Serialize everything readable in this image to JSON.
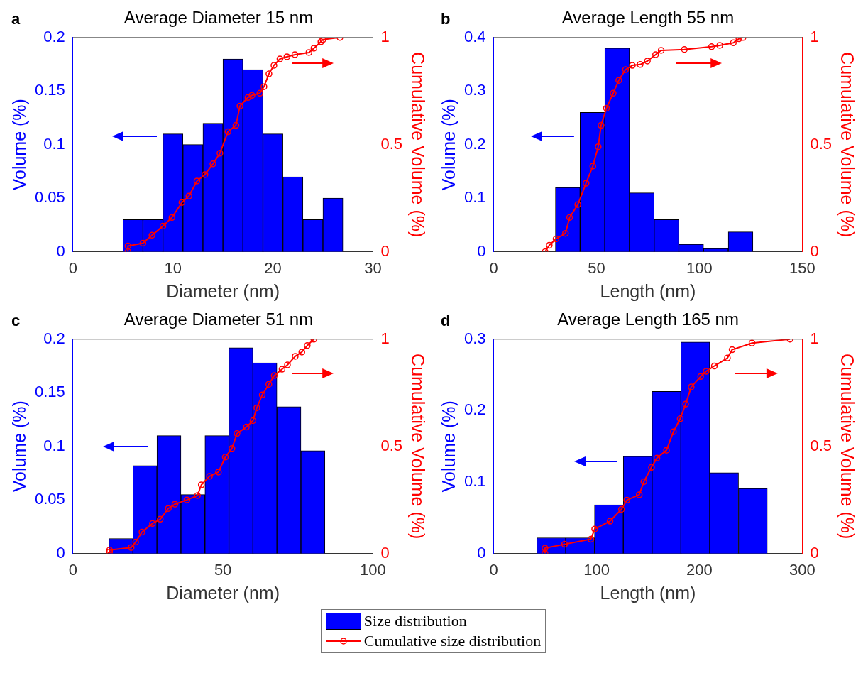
{
  "chart_data": [
    {
      "type": "histogram",
      "title": "Average Diameter 15 nm",
      "annotations": [
        "a"
      ],
      "xlabel": "Diameter (nm)",
      "ylabel": "Volume (%)",
      "y2label": "Cumulative Volume (%)",
      "xlim": [
        0,
        30
      ],
      "xticks": [
        0,
        10,
        20,
        30
      ],
      "ylim": [
        0,
        0.2
      ],
      "yticks": [
        0,
        0.05,
        0.1,
        0.15,
        0.2
      ],
      "y2lim": [
        0,
        1
      ],
      "y2ticks": [
        0,
        0.5,
        1
      ],
      "legend": "bottom",
      "series": [
        {
          "type": "histogram",
          "name": "Size distribution",
          "color": "#0000ff",
          "bins": [
            5,
            7,
            9,
            11,
            13,
            15,
            17,
            19,
            21,
            23,
            25,
            27
          ],
          "values": [
            0.03,
            0.03,
            0.11,
            0.1,
            0.12,
            0.18,
            0.17,
            0.11,
            0.07,
            0.03,
            0.05
          ]
        },
        {
          "type": "line",
          "axis": "y2",
          "name": "Cumulative size distribution",
          "color": "#ff0000",
          "marker": "circle",
          "line_style": "solid",
          "x": [
            5.5,
            5.5,
            7.0,
            7.9,
            9.0,
            9.9,
            10.9,
            11.6,
            12.4,
            13.2,
            14.0,
            14.7,
            15.5,
            16.3,
            16.7,
            17.5,
            17.9,
            18.7,
            19.1,
            19.6,
            20.1,
            20.7,
            21.4,
            22.2,
            23.6,
            24.1,
            24.8,
            25.0,
            26.7
          ],
          "values": [
            0,
            0.027,
            0.04,
            0.077,
            0.12,
            0.16,
            0.23,
            0.26,
            0.33,
            0.36,
            0.41,
            0.46,
            0.56,
            0.59,
            0.68,
            0.72,
            0.73,
            0.74,
            0.77,
            0.83,
            0.87,
            0.9,
            0.91,
            0.92,
            0.93,
            0.95,
            0.98,
            0.99,
            1.0
          ]
        }
      ]
    },
    {
      "type": "histogram",
      "title": "Average Length 55 nm",
      "annotations": [
        "b"
      ],
      "xlabel": "Length (nm)",
      "ylabel": "Volume (%)",
      "y2label": "Cumulative Volume (%)",
      "xlim": [
        0,
        150
      ],
      "xticks": [
        0,
        50,
        100,
        150
      ],
      "ylim": [
        0,
        0.4
      ],
      "yticks": [
        0,
        0.1,
        0.2,
        0.3,
        0.4
      ],
      "y2lim": [
        0,
        1
      ],
      "y2ticks": [
        0,
        0.5,
        1
      ],
      "series": [
        {
          "type": "histogram",
          "color": "#0000ff",
          "bins": [
            30,
            42,
            54,
            66,
            78,
            90,
            102,
            114,
            126
          ],
          "values": [
            0.12,
            0.26,
            0.38,
            0.11,
            0.06,
            0.014,
            0.006,
            0.037
          ]
        },
        {
          "type": "line",
          "axis": "y2",
          "color": "#ff0000",
          "marker": "circle",
          "line_style": "solid",
          "x": [
            25,
            27,
            30.3,
            34.9,
            36.9,
            40.9,
            44.9,
            48.2,
            50.8,
            52.2,
            54.8,
            58.1,
            60.8,
            64.1,
            67.4,
            71.2,
            74.7,
            78.7,
            81.4,
            92.7,
            105.9,
            109.9,
            116.5,
            119.2,
            121.2
          ],
          "values": [
            0,
            0.03,
            0.06,
            0.086,
            0.16,
            0.22,
            0.32,
            0.4,
            0.49,
            0.59,
            0.67,
            0.74,
            0.8,
            0.85,
            0.87,
            0.874,
            0.89,
            0.92,
            0.94,
            0.944,
            0.957,
            0.963,
            0.975,
            0.994,
            1.0
          ]
        }
      ]
    },
    {
      "type": "histogram",
      "title": "Average Diameter 51 nm",
      "annotations": [
        "c"
      ],
      "xlabel": "Diameter (nm)",
      "ylabel": "Volume (%)",
      "y2label": "Cumulative Volume (%)",
      "xlim": [
        0,
        100
      ],
      "xticks": [
        0,
        50,
        100
      ],
      "ylim": [
        0,
        0.2
      ],
      "yticks": [
        0,
        0.05,
        0.1,
        0.15,
        0.2
      ],
      "y2lim": [
        0,
        1
      ],
      "y2ticks": [
        0,
        0.5,
        1
      ],
      "series": [
        {
          "type": "histogram",
          "color": "#0000ff",
          "bins": [
            12,
            20,
            28,
            36,
            44,
            52,
            60,
            68,
            76,
            84
          ],
          "values": [
            0.014,
            0.082,
            0.11,
            0.055,
            0.11,
            0.192,
            0.178,
            0.137,
            0.096
          ]
        },
        {
          "type": "line",
          "axis": "y2",
          "color": "#ff0000",
          "marker": "circle",
          "line_style": "solid",
          "x": [
            12.2,
            12.2,
            19.4,
            20.9,
            23,
            26.5,
            29.1,
            31.8,
            34,
            38,
            41.5,
            42.8,
            45.5,
            48.5,
            50.8,
            53,
            54.7,
            57.8,
            60,
            61.3,
            63.1,
            65.3,
            67.1,
            69.7,
            71.5,
            74.1,
            76.3,
            78.1,
            80.3
          ],
          "values": [
            0.007,
            0.016,
            0.028,
            0.053,
            0.1,
            0.14,
            0.16,
            0.21,
            0.23,
            0.25,
            0.27,
            0.32,
            0.36,
            0.38,
            0.45,
            0.49,
            0.56,
            0.59,
            0.62,
            0.68,
            0.74,
            0.79,
            0.83,
            0.86,
            0.88,
            0.92,
            0.94,
            0.97,
            1.0
          ]
        }
      ]
    },
    {
      "type": "histogram",
      "title": "Average Length 165 nm",
      "annotations": [
        "d"
      ],
      "xlabel": "Length (nm)",
      "ylabel": "Volume (%)",
      "y2label": "Cumulative Volume (%)",
      "xlim": [
        0,
        300
      ],
      "xticks": [
        0,
        100,
        200,
        300
      ],
      "ylim": [
        0,
        0.3
      ],
      "yticks": [
        0,
        0.1,
        0.2,
        0.3
      ],
      "y2lim": [
        0,
        1
      ],
      "y2ticks": [
        0,
        0.5,
        1
      ],
      "series": [
        {
          "type": "histogram",
          "color": "#0000ff",
          "bins": [
            42,
            70,
            98,
            126,
            154,
            182,
            210,
            238,
            266
          ],
          "values": [
            0.022,
            0.022,
            0.068,
            0.136,
            0.227,
            0.296,
            0.113,
            0.091
          ]
        },
        {
          "type": "line",
          "axis": "y2",
          "color": "#ff0000",
          "marker": "circle",
          "line_style": "solid",
          "x": [
            49.9,
            49.9,
            69,
            94.5,
            98.2,
            113.1,
            124.2,
            129.5,
            141.5,
            146,
            153.4,
            158.7,
            168,
            174.7,
            181.3,
            186.6,
            192,
            201.2,
            206.5,
            214.5,
            227.2,
            231.8,
            251.1,
            288
          ],
          "values": [
            0,
            0.025,
            0.043,
            0.067,
            0.114,
            0.151,
            0.206,
            0.249,
            0.274,
            0.335,
            0.402,
            0.445,
            0.482,
            0.568,
            0.629,
            0.697,
            0.777,
            0.826,
            0.85,
            0.875,
            0.912,
            0.951,
            0.982,
            1.0
          ]
        }
      ]
    }
  ]
}
